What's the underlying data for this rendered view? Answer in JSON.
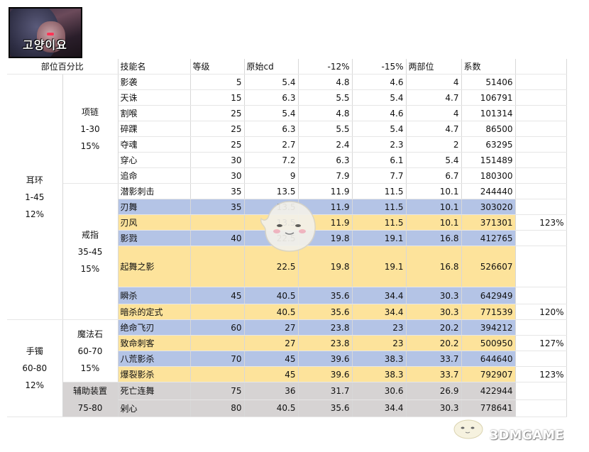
{
  "avatar_text": "고양이요",
  "headers": [
    "部位百分比",
    "技能名",
    "等级",
    "原始cd",
    "-12%",
    "-15%",
    "两部位",
    "系数"
  ],
  "groups": {
    "earring": [
      "耳环",
      "1-45",
      "12%"
    ],
    "necklace": [
      "项链",
      "1-30",
      "15%"
    ],
    "ring": [
      "戒指",
      "35-45",
      "15%"
    ],
    "bracelet": [
      "手镯",
      "60-80",
      "12%"
    ],
    "magic_stone": [
      "魔法石",
      "60-70",
      "15%"
    ],
    "aux": [
      "辅助装置",
      "75-80"
    ]
  },
  "rows": [
    {
      "skill": "影袭",
      "level": "5",
      "cd": "5.4",
      "m12": "4.8",
      "m15": "4.6",
      "two": "4",
      "coef": "51406",
      "pct": ""
    },
    {
      "skill": "天诛",
      "level": "15",
      "cd": "6.3",
      "m12": "5.5",
      "m15": "5.4",
      "two": "4.7",
      "coef": "106791",
      "pct": ""
    },
    {
      "skill": "割喉",
      "level": "25",
      "cd": "5.4",
      "m12": "4.8",
      "m15": "4.6",
      "two": "4",
      "coef": "101314",
      "pct": ""
    },
    {
      "skill": "碎踝",
      "level": "25",
      "cd": "6.3",
      "m12": "5.5",
      "m15": "5.4",
      "two": "4.7",
      "coef": "86500",
      "pct": ""
    },
    {
      "skill": "夺魂",
      "level": "25",
      "cd": "2.7",
      "m12": "2.4",
      "m15": "2.3",
      "two": "2",
      "coef": "63295",
      "pct": ""
    },
    {
      "skill": "穿心",
      "level": "30",
      "cd": "7.2",
      "m12": "6.3",
      "m15": "6.1",
      "two": "5.4",
      "coef": "151489",
      "pct": ""
    },
    {
      "skill": "追命",
      "level": "30",
      "cd": "9",
      "m12": "7.9",
      "m15": "7.7",
      "two": "6.7",
      "coef": "180300",
      "pct": ""
    },
    {
      "skill": "潜影刺击",
      "level": "35",
      "cd": "13.5",
      "m12": "11.9",
      "m15": "11.5",
      "two": "10.1",
      "coef": "244440",
      "pct": ""
    },
    {
      "skill": "刃舞",
      "level": "35",
      "cd": "13.5",
      "m12": "11.9",
      "m15": "11.5",
      "two": "10.1",
      "coef": "303020",
      "pct": ""
    },
    {
      "skill": "刃风",
      "level": "",
      "cd": "13.5",
      "m12": "11.9",
      "m15": "11.5",
      "two": "10.1",
      "coef": "371301",
      "pct": "123%"
    },
    {
      "skill": "影戮",
      "level": "40",
      "cd": "22.5",
      "m12": "19.8",
      "m15": "19.1",
      "two": "16.8",
      "coef": "412765",
      "pct": ""
    },
    {
      "skill": "起舞之影",
      "level": "",
      "cd": "22.5",
      "m12": "19.8",
      "m15": "19.1",
      "two": "16.8",
      "coef": "526607",
      "pct": ""
    },
    {
      "skill": "瞬杀",
      "level": "45",
      "cd": "40.5",
      "m12": "35.6",
      "m15": "34.4",
      "two": "30.3",
      "coef": "642949",
      "pct": ""
    },
    {
      "skill": "暗杀的定式",
      "level": "",
      "cd": "40.5",
      "m12": "35.6",
      "m15": "34.4",
      "two": "30.3",
      "coef": "771539",
      "pct": "120%"
    },
    {
      "skill": "绝命飞刃",
      "level": "60",
      "cd": "27",
      "m12": "23.8",
      "m15": "23",
      "two": "20.2",
      "coef": "394212",
      "pct": ""
    },
    {
      "skill": "致命刺客",
      "level": "",
      "cd": "27",
      "m12": "23.8",
      "m15": "23",
      "two": "20.2",
      "coef": "500950",
      "pct": "127%"
    },
    {
      "skill": "八荒影杀",
      "level": "70",
      "cd": "45",
      "m12": "39.6",
      "m15": "38.3",
      "two": "33.7",
      "coef": "644640",
      "pct": ""
    },
    {
      "skill": "爆裂影杀",
      "level": "",
      "cd": "45",
      "m12": "39.6",
      "m15": "38.3",
      "two": "33.7",
      "coef": "792907",
      "pct": "123%"
    },
    {
      "skill": "死亡连舞",
      "level": "75",
      "cd": "36",
      "m12": "31.7",
      "m15": "30.6",
      "two": "26.9",
      "coef": "422944",
      "pct": ""
    },
    {
      "skill": "剁心",
      "level": "80",
      "cd": "40.5",
      "m12": "35.6",
      "m15": "34.4",
      "two": "30.3",
      "coef": "778641",
      "pct": ""
    }
  ],
  "watermark": "3DMGAME",
  "colors": {
    "blue": "#b4c4e6",
    "yellow": "#fde39b",
    "gray": "#d6d3d3"
  }
}
